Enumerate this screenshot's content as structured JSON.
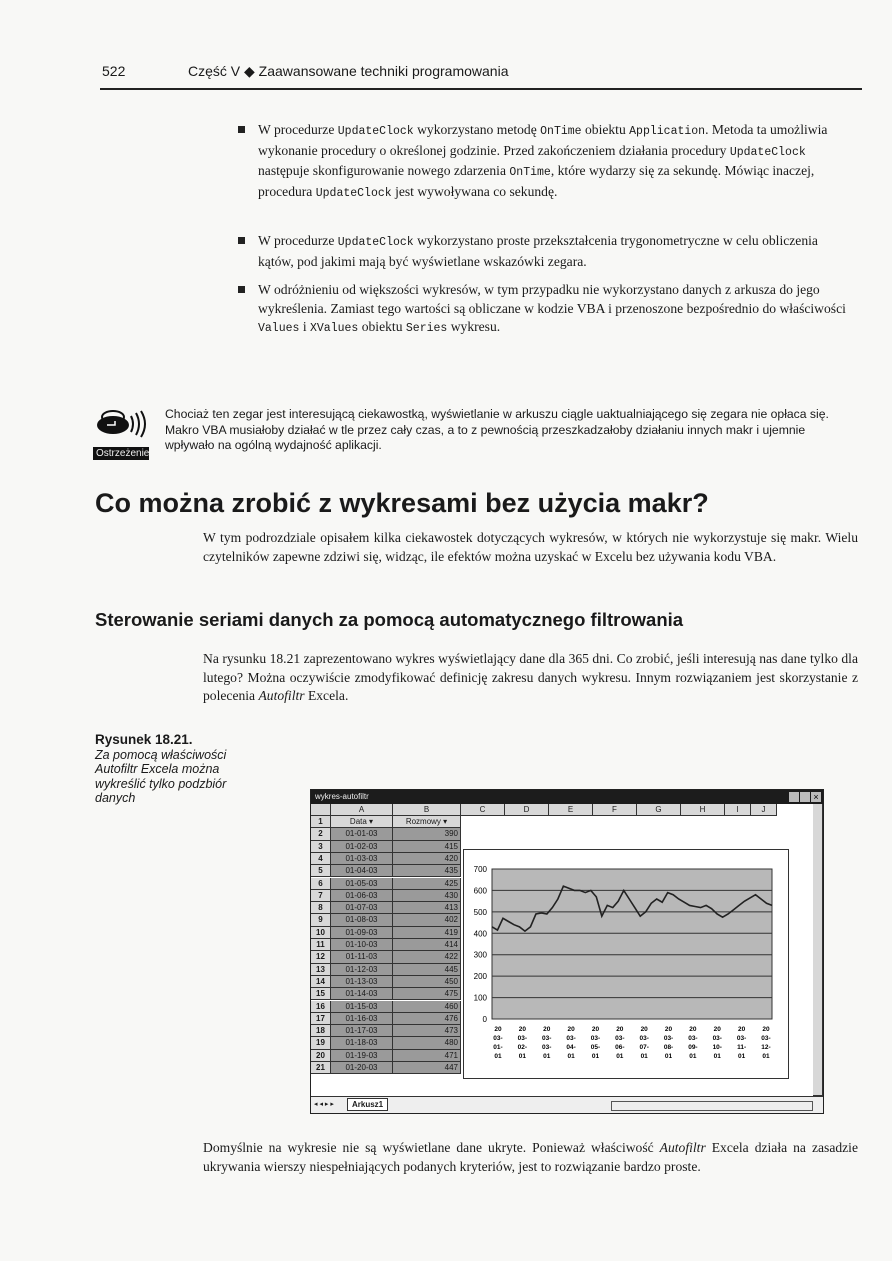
{
  "header": {
    "page_number": "522",
    "running_title": "Część V ◆ Zaawansowane techniki programowania"
  },
  "bullets": [
    {
      "parts": [
        "W procedurze ",
        "UpdateClock",
        " wykorzystano metodę ",
        "OnTime",
        " obiektu ",
        "Application",
        ". Metoda ta umożliwia wykonanie procedury o określonej godzinie. Przed zakończeniem działania procedury ",
        "UpdateClock",
        " następuje skonfigurowanie nowego zdarzenia ",
        "OnTime",
        ", które wydarzy się za sekundę. Mówiąc inaczej, procedura ",
        "UpdateClock",
        " jest wywoływana co sekundę."
      ]
    },
    {
      "parts": [
        "W procedurze ",
        "UpdateClock",
        " wykorzystano proste przekształcenia trygonometryczne w celu obliczenia kątów, pod jakimi mają być wyświetlane wskazówki zegara."
      ]
    },
    {
      "parts": [
        "W odróżnieniu od większości wykresów, w tym przypadku nie wykorzystano danych z arkusza do jego wykreślenia. Zamiast tego wartości są obliczane w kodzie VBA i przenoszone bezpośrednio do właściwości ",
        "Values",
        " i ",
        "XValues",
        " obiektu ",
        "Series",
        " wykresu."
      ]
    }
  ],
  "warning": {
    "icon": "warning-siren-icon",
    "label": "Ostrzeżenie",
    "text": "Chociaż ten zegar jest interesującą ciekawostką, wyświetlanie w arkuszu ciągle uaktualniającego się zegara nie opłaca się. Makro VBA musiałoby działać w tle przez cały czas, a to z pewnością przeszkadzałoby działaniu innych makr i ujemnie wpływało na ogólną wydajność aplikacji."
  },
  "section": {
    "title": "Co można zrobić z wykresami bez użycia makr?",
    "intro": "W tym podrozdziale opisałem kilka ciekawostek dotyczących wykresów, w których nie wykorzystuje się makr. Wielu czytelników zapewne zdziwi się, widząc, ile efektów można uzyskać w Excelu bez używania kodu VBA."
  },
  "subsection": {
    "title": "Sterowanie seriami danych za pomocą automatycznego filtrowania",
    "para1_a": "Na rysunku 18.21 zaprezentowano wykres wyświetlający dane dla 365 dni. Co zrobić, jeśli interesują nas dane tylko dla lutego? Można oczywiście zmodyfikować definicję zakresu danych wykresu. Innym rozwiązaniem jest skorzystanie z polecenia ",
    "para1_em": "Autofiltr",
    "para1_b": " Excela.",
    "para2_a": "Domyślnie na wykresie nie są wyświetlane dane ukryte. Ponieważ właściwość ",
    "para2_em": "Autofiltr",
    "para2_b": " Excela działa na zasadzie ukrywania wierszy niespełniających podanych kryteriów, jest to rozwiązanie bardzo proste."
  },
  "figure": {
    "label": "Rysunek 18.21.",
    "caption": "Za pomocą właściwości Autofiltr Excela można wykreślić tylko podzbiór danych"
  },
  "excel": {
    "window_title": "wykres-autofiltr",
    "columns": [
      "A",
      "B",
      "C",
      "D",
      "E",
      "F",
      "G",
      "H",
      "I",
      "J"
    ],
    "headers": [
      "Data",
      "Rozmowy"
    ],
    "rows": [
      [
        "01-01-03",
        "390"
      ],
      [
        "01-02-03",
        "415"
      ],
      [
        "01-03-03",
        "420"
      ],
      [
        "01-04-03",
        "435"
      ],
      [
        "01-05-03",
        "425"
      ],
      [
        "01-06-03",
        "430"
      ],
      [
        "01-07-03",
        "413"
      ],
      [
        "01-08-03",
        "402"
      ],
      [
        "01-09-03",
        "419"
      ],
      [
        "01-10-03",
        "414"
      ],
      [
        "01-11-03",
        "422"
      ],
      [
        "01-12-03",
        "445"
      ],
      [
        "01-13-03",
        "450"
      ],
      [
        "01-14-03",
        "475"
      ],
      [
        "01-15-03",
        "460"
      ],
      [
        "01-16-03",
        "476"
      ],
      [
        "01-17-03",
        "473"
      ],
      [
        "01-18-03",
        "480"
      ],
      [
        "01-19-03",
        "471"
      ],
      [
        "01-20-03",
        "447"
      ]
    ],
    "sheet_tab": "Arkusz1"
  },
  "chart_data": {
    "type": "line",
    "ylim": [
      0,
      700
    ],
    "yticks": [
      0,
      100,
      200,
      300,
      400,
      500,
      600,
      700
    ],
    "xtick_labels": [
      "2003-01-01",
      "2003-02-01",
      "2003-03-01",
      "2003-04-01",
      "2003-05-01",
      "2003-06-01",
      "2003-07-01",
      "2003-08-01",
      "2003-09-01",
      "2003-10-01",
      "2003-11-01",
      "2003-12-01"
    ],
    "grid": true,
    "color": "#222222",
    "background": "#b8b8b8",
    "values": [
      430,
      415,
      470,
      455,
      440,
      430,
      410,
      430,
      490,
      495,
      490,
      520,
      560,
      620,
      610,
      600,
      600,
      590,
      600,
      570,
      480,
      530,
      520,
      550,
      600,
      560,
      520,
      480,
      500,
      540,
      560,
      545,
      590,
      580,
      560,
      545,
      530,
      525,
      520,
      530,
      515,
      490,
      475,
      490,
      510,
      530,
      550,
      565,
      580,
      560,
      540,
      530
    ]
  }
}
